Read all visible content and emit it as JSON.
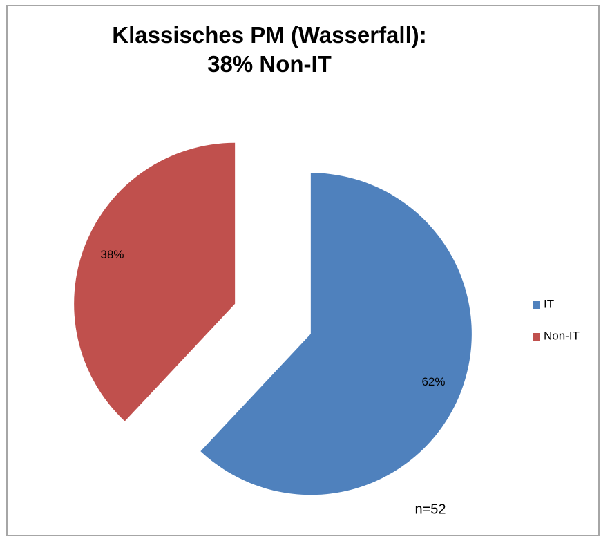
{
  "chart_data": {
    "type": "pie",
    "title": "Klassisches PM (Wasserfall):\n38% Non-IT",
    "categories": [
      "IT",
      "Non-IT"
    ],
    "values": [
      62,
      38
    ],
    "value_labels": [
      "62%",
      "38%"
    ],
    "colors": [
      "#4f81bd",
      "#c0504d"
    ],
    "annotation": "n=52",
    "legend": "right"
  }
}
